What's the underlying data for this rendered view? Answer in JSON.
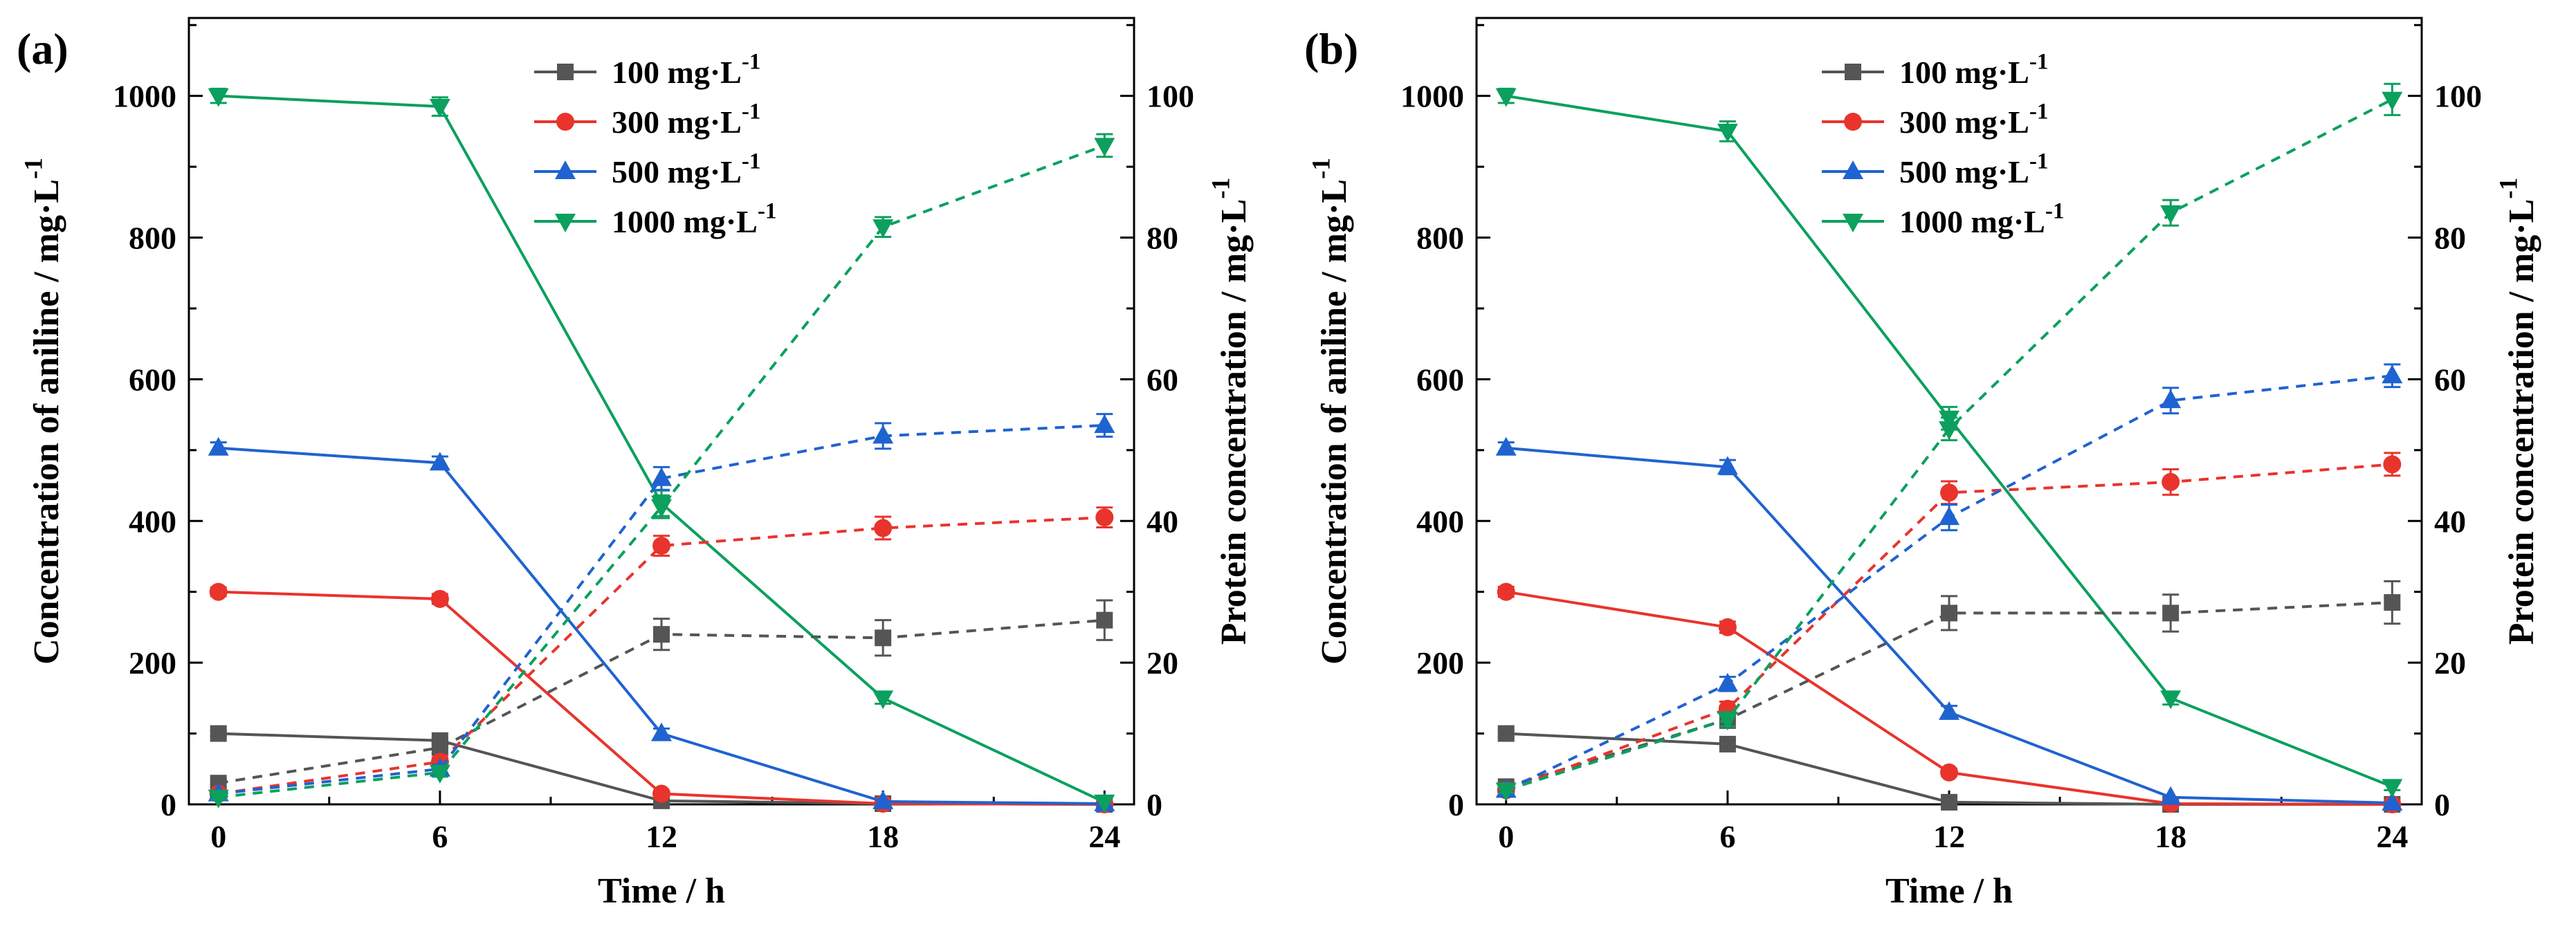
{
  "figure": {
    "background": "#ffffff",
    "text_color": "#000000"
  },
  "legend_colors": {
    "c100": "#555555",
    "c300": "#e8342c",
    "c500": "#1f63d0",
    "c1000": "#0ba05e"
  },
  "chart_data": [
    {
      "type": "line",
      "panel_label": "(a)",
      "xlabel": "Time / h",
      "ylabel_left": "Concentration of aniline / mg·L⁻¹",
      "ylabel_right": "Protein concentration / mg·L⁻¹",
      "x": [
        0,
        6,
        12,
        18,
        24
      ],
      "xlim": [
        -0.8,
        24.8
      ],
      "ylim_left": [
        0,
        1110
      ],
      "yticks_left": [
        0,
        200,
        400,
        600,
        800,
        1000
      ],
      "ylim_right": [
        0,
        111
      ],
      "yticks_right": [
        0,
        20,
        40,
        60,
        80,
        100
      ],
      "grid": false,
      "legend_position": "upper-inside",
      "series": [
        {
          "id": "aniline-100",
          "name": "100 mg·L⁻¹",
          "axis": "left",
          "style": "solid",
          "marker": "square",
          "color": "#555555",
          "values": [
            100,
            90,
            5,
            1,
            0
          ],
          "errors": [
            4,
            4,
            2,
            0,
            0
          ]
        },
        {
          "id": "aniline-300",
          "name": "300 mg·L⁻¹",
          "axis": "left",
          "style": "solid",
          "marker": "circle",
          "color": "#e8342c",
          "values": [
            300,
            290,
            15,
            1,
            0
          ],
          "errors": [
            6,
            7,
            4,
            0,
            0
          ]
        },
        {
          "id": "aniline-500",
          "name": "500 mg·L⁻¹",
          "axis": "left",
          "style": "solid",
          "marker": "triangle-up",
          "color": "#1f63d0",
          "values": [
            503,
            482,
            100,
            4,
            1
          ],
          "errors": [
            8,
            9,
            7,
            0,
            0
          ]
        },
        {
          "id": "aniline-1000",
          "name": "1000 mg·L⁻¹",
          "axis": "left",
          "style": "solid",
          "marker": "triangle-down",
          "color": "#0ba05e",
          "values": [
            1000,
            985,
            425,
            150,
            3
          ],
          "errors": [
            10,
            13,
            18,
            8,
            0
          ]
        },
        {
          "id": "protein-100",
          "name": "100 mg·L⁻¹",
          "axis": "right",
          "style": "dashed",
          "marker": "square",
          "color": "#555555",
          "values": [
            3,
            8,
            24,
            23.5,
            26
          ],
          "errors": [
            0.6,
            0.8,
            2.2,
            2.5,
            2.8
          ]
        },
        {
          "id": "protein-300",
          "name": "300 mg·L⁻¹",
          "axis": "right",
          "style": "dashed",
          "marker": "circle",
          "color": "#e8342c",
          "values": [
            1.5,
            6,
            36.5,
            39,
            40.5
          ],
          "errors": [
            0.4,
            0.6,
            1.4,
            1.6,
            1.4
          ]
        },
        {
          "id": "protein-500",
          "name": "500 mg·L⁻¹",
          "axis": "right",
          "style": "dashed",
          "marker": "triangle-up",
          "color": "#1f63d0",
          "values": [
            1.5,
            5,
            46,
            52,
            53.5
          ],
          "errors": [
            0.4,
            0.6,
            1.6,
            1.8,
            1.6
          ]
        },
        {
          "id": "protein-1000",
          "name": "1000 mg·L⁻¹",
          "axis": "right",
          "style": "dashed",
          "marker": "triangle-down",
          "color": "#0ba05e",
          "values": [
            1,
            4.5,
            42,
            81.5,
            93
          ],
          "errors": [
            0.3,
            0.6,
            1.6,
            1.4,
            1.6
          ]
        }
      ]
    },
    {
      "type": "line",
      "panel_label": "(b)",
      "xlabel": "Time / h",
      "ylabel_left": "Concentration of aniline / mg·L⁻¹",
      "ylabel_right": "Protein concentration / mg·L⁻¹",
      "x": [
        0,
        6,
        12,
        18,
        24
      ],
      "xlim": [
        -0.8,
        24.8
      ],
      "ylim_left": [
        0,
        1110
      ],
      "yticks_left": [
        0,
        200,
        400,
        600,
        800,
        1000
      ],
      "ylim_right": [
        0,
        111
      ],
      "yticks_right": [
        0,
        20,
        40,
        60,
        80,
        100
      ],
      "grid": false,
      "legend_position": "upper-inside",
      "series": [
        {
          "id": "aniline-100",
          "name": "100 mg·L⁻¹",
          "axis": "left",
          "style": "solid",
          "marker": "square",
          "color": "#555555",
          "values": [
            100,
            85,
            3,
            0,
            0
          ],
          "errors": [
            5,
            5,
            0,
            0,
            0
          ]
        },
        {
          "id": "aniline-300",
          "name": "300 mg·L⁻¹",
          "axis": "left",
          "style": "solid",
          "marker": "circle",
          "color": "#e8342c",
          "values": [
            300,
            250,
            45,
            1,
            0
          ],
          "errors": [
            7,
            8,
            5,
            0,
            0
          ]
        },
        {
          "id": "aniline-500",
          "name": "500 mg·L⁻¹",
          "axis": "left",
          "style": "solid",
          "marker": "triangle-up",
          "color": "#1f63d0",
          "values": [
            503,
            476,
            130,
            10,
            2
          ],
          "errors": [
            8,
            10,
            9,
            0,
            0
          ]
        },
        {
          "id": "aniline-1000",
          "name": "1000 mg·L⁻¹",
          "axis": "left",
          "style": "solid",
          "marker": "triangle-down",
          "color": "#0ba05e",
          "values": [
            1000,
            950,
            545,
            150,
            25
          ],
          "errors": [
            10,
            14,
            16,
            9,
            5
          ]
        },
        {
          "id": "protein-100",
          "name": "100 mg·L⁻¹",
          "axis": "right",
          "style": "dashed",
          "marker": "square",
          "color": "#555555",
          "values": [
            2.5,
            12,
            27,
            27,
            28.5
          ],
          "errors": [
            0.6,
            1.2,
            2.4,
            2.6,
            3.0
          ]
        },
        {
          "id": "protein-300",
          "name": "300 mg·L⁻¹",
          "axis": "right",
          "style": "dashed",
          "marker": "circle",
          "color": "#e8342c",
          "values": [
            2,
            13.5,
            44,
            45.5,
            48
          ],
          "errors": [
            0.4,
            1.0,
            1.6,
            1.8,
            1.6
          ]
        },
        {
          "id": "protein-500",
          "name": "500 mg·L⁻¹",
          "axis": "right",
          "style": "dashed",
          "marker": "triangle-up",
          "color": "#1f63d0",
          "values": [
            2,
            17,
            40.5,
            57,
            60.5
          ],
          "errors": [
            0.4,
            1.0,
            1.8,
            1.8,
            1.6
          ]
        },
        {
          "id": "protein-1000",
          "name": "1000 mg·L⁻¹",
          "axis": "right",
          "style": "dashed",
          "marker": "triangle-down",
          "color": "#0ba05e",
          "values": [
            2,
            12,
            53,
            83.5,
            99.5
          ],
          "errors": [
            0.4,
            1.0,
            1.6,
            1.8,
            2.2
          ]
        }
      ]
    }
  ]
}
